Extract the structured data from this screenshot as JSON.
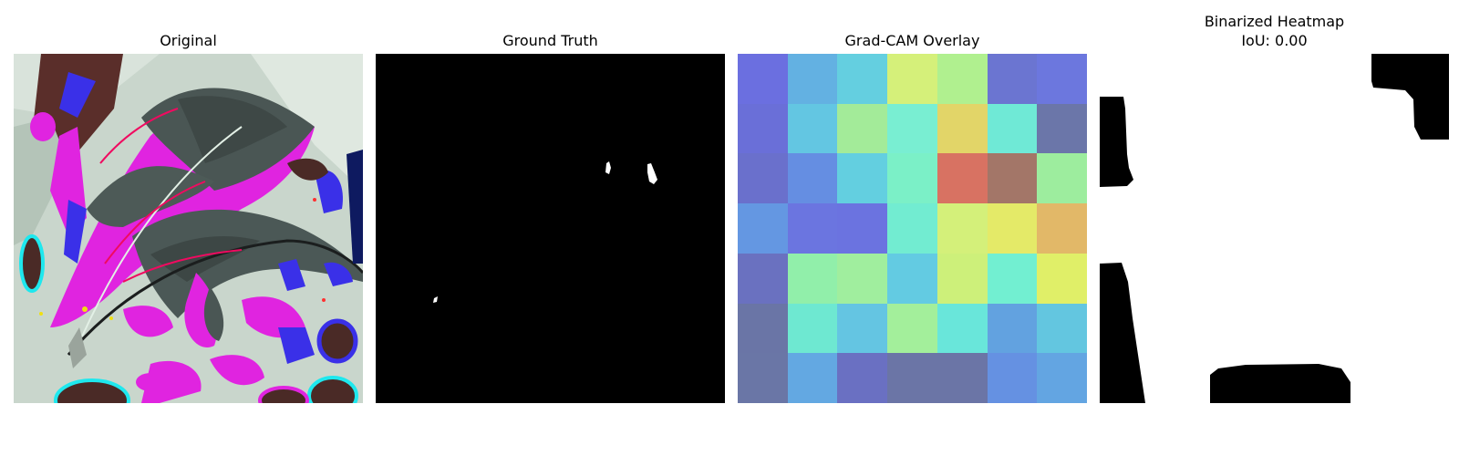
{
  "panels": [
    {
      "title": "Original"
    },
    {
      "title": "Ground Truth"
    },
    {
      "title": "Grad-CAM Overlay"
    },
    {
      "title": "Binarized Heatmap",
      "subtitle": "IoU: 0.00"
    }
  ],
  "gradcam": {
    "grid": [
      [
        "#6b6fe0",
        "#63b1e2",
        "#64cfe0",
        "#d5f07a",
        "#b0f08f",
        "#6b75d1",
        "#6c77de"
      ],
      [
        "#6a6fd8",
        "#63c6e2",
        "#a3eb99",
        "#79eed2",
        "#e2d568",
        "#6fe9d6",
        "#6b76a9"
      ],
      [
        "#6a70cc",
        "#658ee2",
        "#63cfe0",
        "#7bf0c7",
        "#d87262",
        "#a37668",
        "#9ded9e"
      ],
      [
        "#6497e2",
        "#6b75e0",
        "#6b73e0",
        "#72ecd1",
        "#d4f07a",
        "#e4ea68",
        "#e2b868"
      ],
      [
        "#6a71c0",
        "#91efaa",
        "#a0ee9e",
        "#63cbe2",
        "#cdf07a",
        "#72efd1",
        "#e0ef68"
      ],
      [
        "#6a75a6",
        "#6ee8d1",
        "#64c5e2",
        "#a3ef9b",
        "#69e6da",
        "#62a2e0",
        "#63c6e0"
      ],
      [
        "#6a76a6",
        "#63a8e2",
        "#6a70c2",
        "#6b75a6",
        "#6b75a6",
        "#6591e2",
        "#63a5e2"
      ]
    ]
  }
}
